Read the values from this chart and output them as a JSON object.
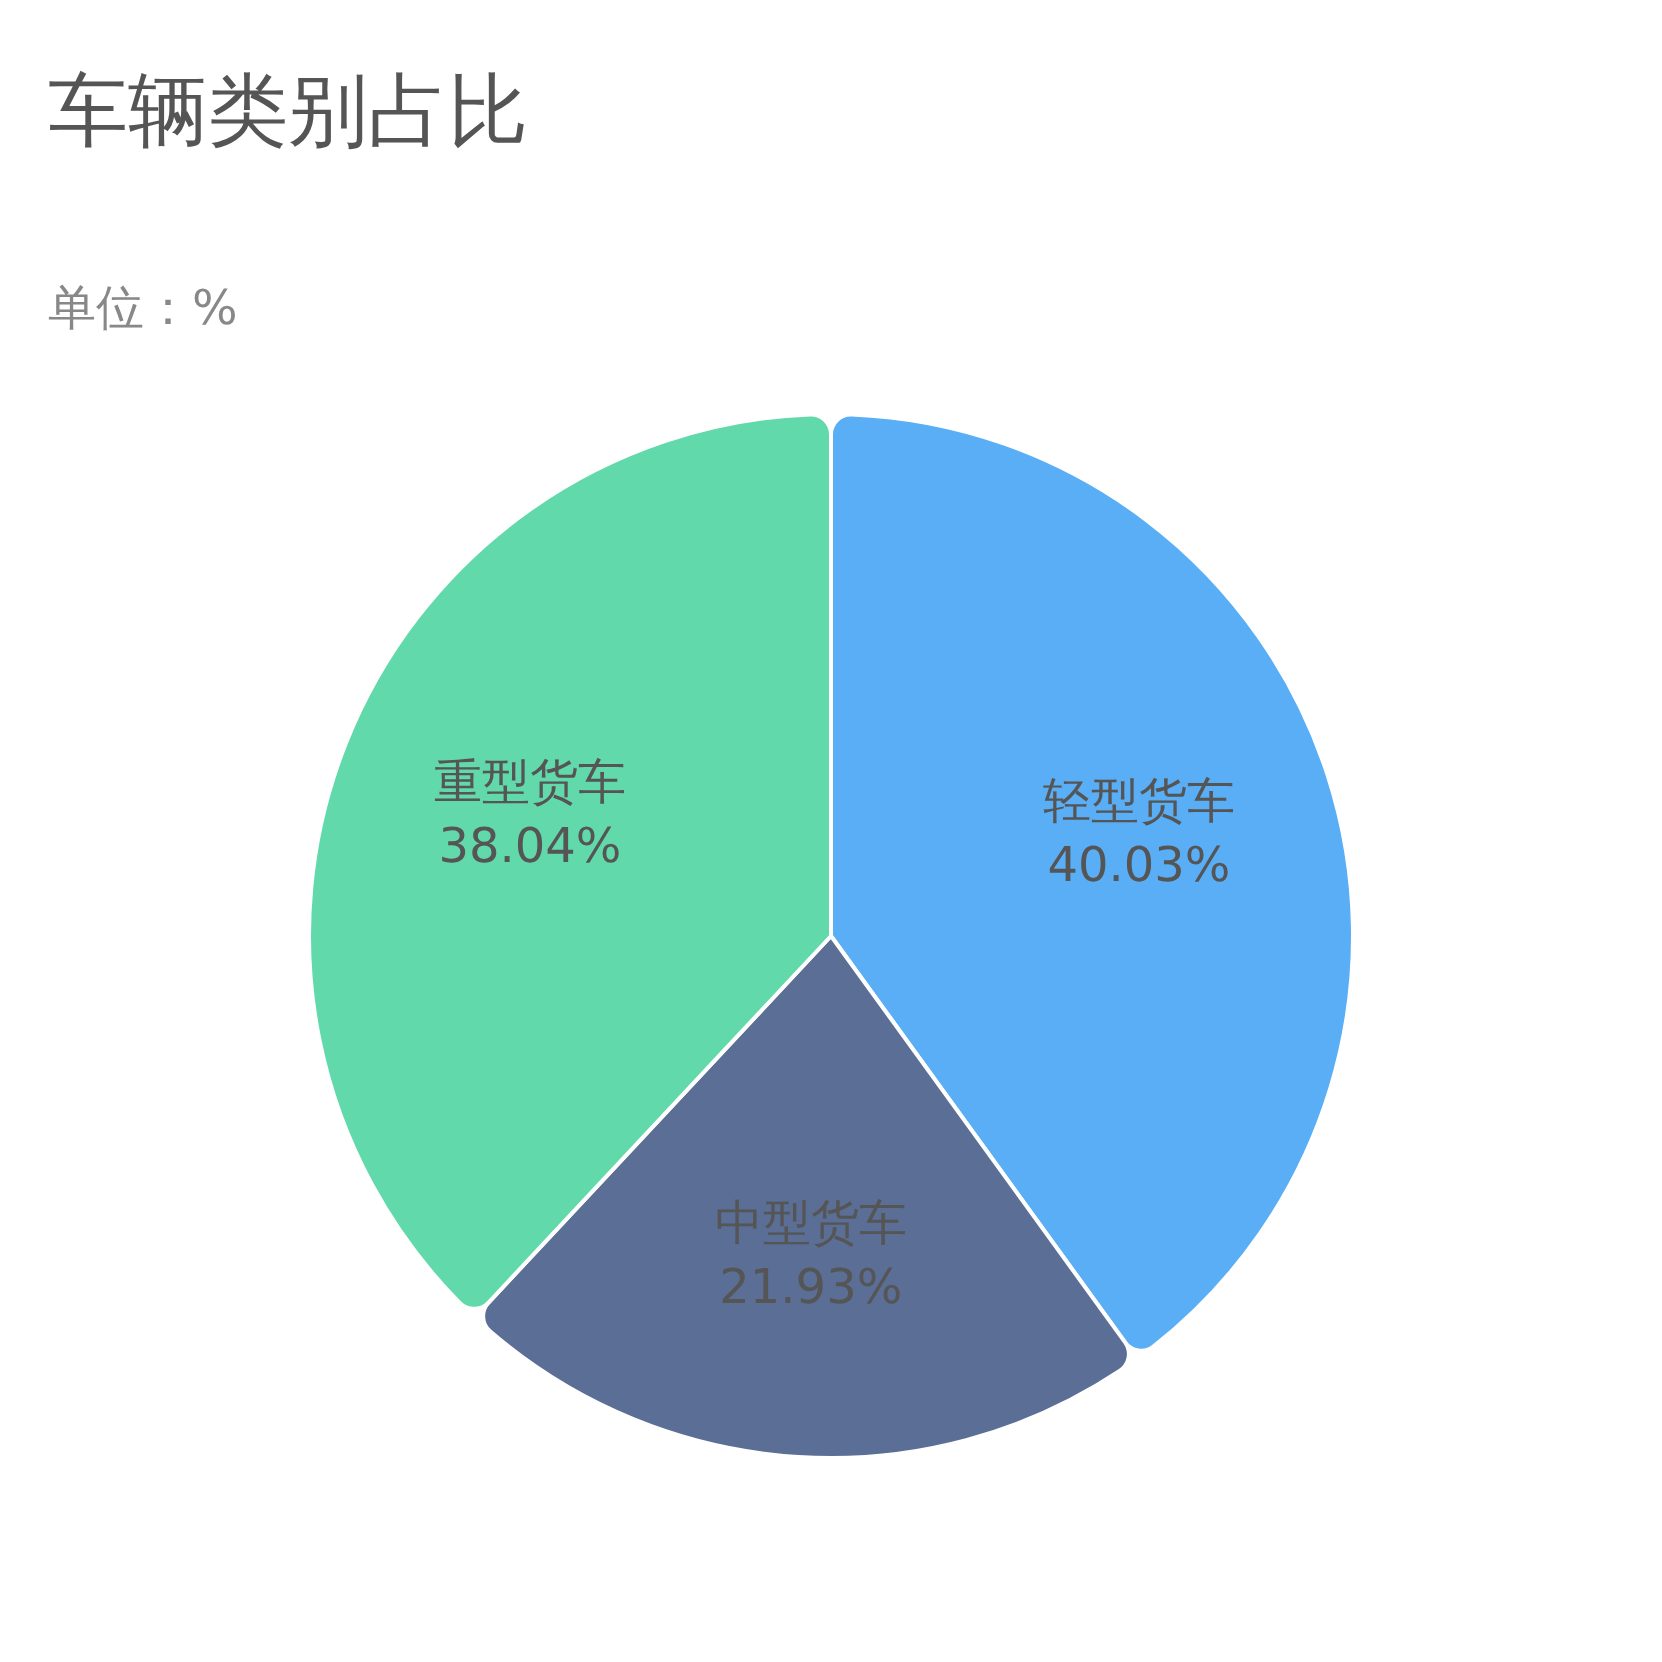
{
  "chart_data": {
    "type": "pie",
    "title": "车辆类别占比",
    "subtitle": "单位：%",
    "categories": [
      "轻型货车",
      "中型货车",
      "重型货车"
    ],
    "values": [
      40.03,
      21.93,
      38.04
    ],
    "value_labels": [
      "40.03%",
      "21.93%",
      "38.04%"
    ],
    "colors": [
      "#5aaef5",
      "#5a6e96",
      "#62d9ab"
    ],
    "legend": false
  }
}
